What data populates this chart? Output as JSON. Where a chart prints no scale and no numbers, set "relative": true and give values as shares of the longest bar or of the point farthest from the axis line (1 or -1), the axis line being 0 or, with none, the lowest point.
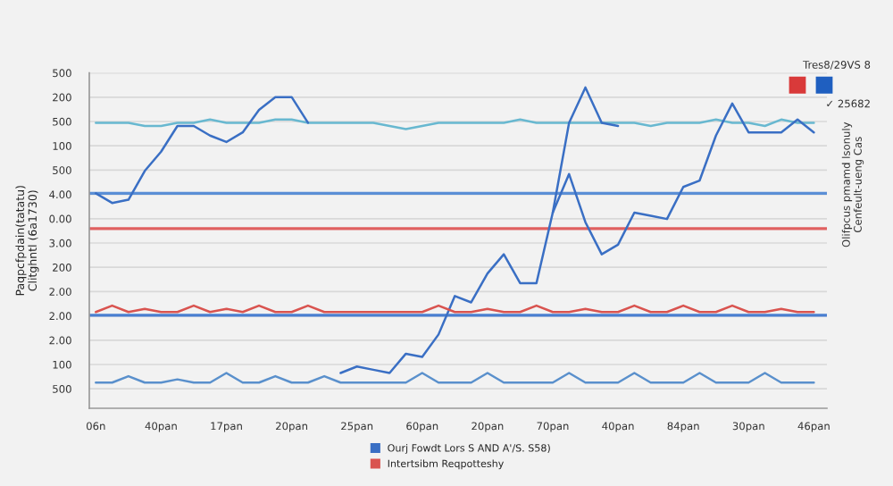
{
  "chart_data": {
    "type": "line",
    "relative": true,
    "ylabel": "Paqpcfpdain(tatatu)\nClitghntl (6a1730)",
    "annotations": [
      "Tres8/29VS 8",
      "✓ 25682",
      "Olifpcus pmamd lsonuly\nCenfeult-ueng Cas",
      "500",
      "100",
      "2.00",
      "2.00",
      "2.00",
      "200",
      "3.00",
      "0.00",
      "4.00",
      "500",
      "100",
      "500",
      "200",
      "500"
    ],
    "categories": [
      "06n",
      null,
      null,
      null,
      "40pan",
      null,
      null,
      null,
      "17pan",
      null,
      null,
      null,
      "20pan",
      null,
      null,
      null,
      "25pan",
      null,
      null,
      null,
      "60pan",
      null,
      null,
      null,
      "20pan",
      null,
      null,
      null,
      "70pan",
      null,
      null,
      null,
      "40pan",
      null,
      null,
      null,
      "84pan",
      null,
      null,
      null,
      "30pan",
      null,
      null,
      null,
      "46pan"
    ],
    "grid": "y",
    "legend": "bottom",
    "marker": "none",
    "line_style": "solid",
    "ref_lines": [
      {
        "axis": "y",
        "value": 0.67,
        "color": "#5b8fd6"
      },
      {
        "axis": "y",
        "value": 0.56,
        "color": "#e06060"
      },
      {
        "axis": "y",
        "value": 0.29,
        "color": "#4a7fd0"
      }
    ],
    "series": [
      {
        "color": "#68b8d0",
        "values": [
          0.89,
          0.89,
          0.89,
          0.88,
          0.88,
          0.89,
          0.89,
          0.9,
          0.89,
          0.89,
          0.89,
          0.9,
          0.9,
          0.89,
          0.89,
          0.89,
          0.89,
          0.89,
          0.88,
          0.87,
          0.88,
          0.89,
          0.89,
          0.89,
          0.89,
          0.89,
          0.9,
          0.89,
          0.89,
          0.89,
          0.89,
          0.89,
          0.89,
          0.89,
          0.88,
          0.89,
          0.89,
          0.89,
          0.9,
          0.89,
          0.89,
          0.88,
          0.9,
          0.89,
          0.89
        ]
      },
      {
        "name": "Ourj Fowdt Lors S AND A'/S. S58)",
        "color": "#3a6fc4",
        "values": [
          0.67,
          0.64,
          0.65,
          0.74,
          0.8,
          0.88,
          0.88,
          0.85,
          0.83,
          0.86,
          0.93,
          0.97,
          0.97,
          0.89,
          null,
          0.11,
          0.13,
          0.12,
          0.11,
          0.17,
          0.16,
          0.23,
          0.35,
          0.33,
          0.42,
          0.48,
          0.39,
          0.39,
          0.61,
          0.73,
          0.58,
          0.48,
          0.51,
          0.61,
          0.6,
          0.59,
          0.69,
          0.71,
          0.85,
          0.95,
          0.86,
          0.86,
          0.86,
          0.9,
          0.86
        ]
      },
      {
        "color": "#3a6fc4",
        "values": [
          null,
          null,
          null,
          null,
          null,
          null,
          null,
          null,
          null,
          null,
          null,
          null,
          null,
          null,
          null,
          null,
          null,
          null,
          null,
          null,
          null,
          null,
          null,
          null,
          null,
          null,
          null,
          null,
          0.61,
          0.89,
          1.0,
          0.89,
          0.88,
          null,
          null,
          null,
          null,
          null,
          null,
          null,
          null,
          null,
          null,
          null,
          null
        ]
      },
      {
        "name": "Intertsibm Reqpotteshy",
        "color": "#d9534f",
        "values": [
          0.3,
          0.32,
          0.3,
          0.31,
          0.3,
          0.3,
          0.32,
          0.3,
          0.31,
          0.3,
          0.32,
          0.3,
          0.3,
          0.32,
          0.3,
          0.3,
          0.3,
          0.3,
          0.3,
          0.3,
          0.3,
          0.32,
          0.3,
          0.3,
          0.31,
          0.3,
          0.3,
          0.32,
          0.3,
          0.3,
          0.31,
          0.3,
          0.3,
          0.32,
          0.3,
          0.3,
          0.32,
          0.3,
          0.3,
          0.32,
          0.3,
          0.3,
          0.31,
          0.3,
          0.3
        ]
      },
      {
        "color": "#5a90cc",
        "values": [
          0.08,
          0.08,
          0.1,
          0.08,
          0.08,
          0.09,
          0.08,
          0.08,
          0.11,
          0.08,
          0.08,
          0.1,
          0.08,
          0.08,
          0.1,
          0.08,
          0.08,
          0.08,
          0.08,
          0.08,
          0.11,
          0.08,
          0.08,
          0.08,
          0.11,
          0.08,
          0.08,
          0.08,
          0.08,
          0.11,
          0.08,
          0.08,
          0.08,
          0.11,
          0.08,
          0.08,
          0.08,
          0.11,
          0.08,
          0.08,
          0.08,
          0.11,
          0.08,
          0.08,
          0.08
        ]
      }
    ]
  }
}
